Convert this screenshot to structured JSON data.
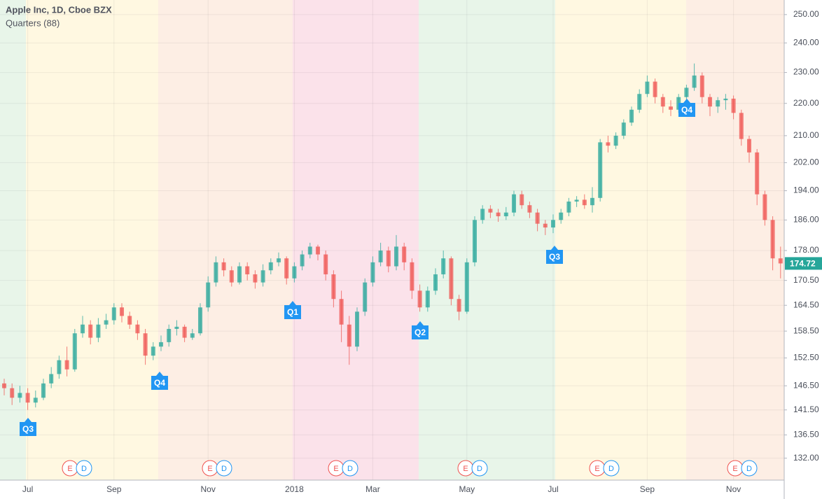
{
  "header": {
    "title": "Apple Inc, 1D, Cboe BZX",
    "indicator": "Quarters (88)"
  },
  "chart_data": {
    "type": "candlestick",
    "categories": [
      null,
      null,
      null,
      "Jul",
      null,
      null,
      null,
      null,
      null,
      null,
      null,
      null,
      null,
      null,
      "Sep",
      null,
      null,
      null,
      null,
      null,
      null,
      null,
      null,
      null,
      null,
      null,
      "Nov",
      null,
      null,
      null,
      null,
      null,
      null,
      null,
      null,
      null,
      null,
      "2018",
      null,
      null,
      null,
      null,
      null,
      null,
      null,
      null,
      null,
      "Mar",
      null,
      null,
      null,
      null,
      null,
      null,
      null,
      null,
      null,
      null,
      null,
      "May",
      null,
      null,
      null,
      null,
      null,
      null,
      null,
      null,
      null,
      null,
      "Jul",
      null,
      null,
      null,
      null,
      null,
      null,
      null,
      null,
      null,
      null,
      null,
      "Sep",
      null,
      null,
      null,
      null,
      null,
      null,
      null,
      null,
      null,
      null,
      "Nov",
      null,
      null,
      null,
      null,
      null,
      null
    ],
    "open": [
      147,
      146,
      144,
      145,
      143,
      144,
      147,
      149,
      152,
      150,
      158,
      160,
      157,
      160,
      161,
      164,
      162,
      160,
      158,
      153,
      155,
      156,
      159,
      159.5,
      157,
      158,
      164,
      170,
      175,
      173,
      170,
      174,
      172,
      170,
      173,
      175,
      176,
      171,
      174,
      177,
      179,
      177,
      172,
      166,
      160,
      155,
      163,
      170,
      175,
      178,
      174,
      179,
      175,
      168,
      164,
      168,
      172,
      176,
      166,
      163,
      175,
      186,
      189,
      188,
      187,
      188,
      193,
      190,
      188,
      185,
      184,
      186,
      188,
      191,
      191.5,
      190,
      192,
      208,
      207,
      210,
      214,
      218,
      223,
      227,
      222,
      219,
      218,
      222,
      225,
      229,
      222,
      219,
      221,
      221.5,
      217,
      209,
      205,
      193,
      186,
      176
    ],
    "high": [
      148,
      147,
      146.5,
      146,
      145.5,
      148,
      150.5,
      153,
      155,
      159,
      162,
      161,
      161.5,
      162.5,
      165,
      165,
      163,
      161,
      159,
      156,
      157.5,
      160,
      161,
      160,
      159,
      165,
      171.5,
      176.5,
      176,
      174,
      175,
      175,
      173,
      174.5,
      176,
      177.5,
      176.5,
      175,
      178,
      180,
      179.5,
      178,
      173,
      168,
      162,
      164,
      171,
      176.5,
      180,
      179,
      182,
      180,
      176,
      169.5,
      169,
      173.5,
      178,
      176.5,
      167,
      176,
      187,
      190,
      190,
      189,
      189.5,
      194,
      194,
      191,
      189,
      186,
      187.5,
      189,
      192,
      192.5,
      193,
      195,
      209,
      210,
      211,
      215,
      219,
      224.5,
      229,
      228,
      223,
      221,
      223,
      226,
      233,
      230,
      223,
      222,
      223,
      222.5,
      218,
      210,
      206,
      194,
      187,
      179
    ],
    "low": [
      144.5,
      142.5,
      143,
      141.5,
      142,
      143.5,
      146,
      148,
      148.5,
      149.5,
      157,
      155.5,
      156,
      159,
      160,
      160.5,
      159,
      156.5,
      151,
      152,
      154,
      155,
      157.5,
      156,
      156.5,
      157.5,
      163,
      169,
      171.5,
      169,
      169.5,
      170.5,
      168.5,
      169,
      172,
      174,
      169.5,
      170,
      173,
      176,
      175.5,
      170.5,
      164,
      156,
      151,
      154,
      162,
      169,
      174,
      172.5,
      173,
      173,
      166,
      163,
      163,
      167,
      171,
      164.5,
      161,
      162.5,
      174,
      185,
      186.5,
      185.5,
      186,
      187,
      189,
      186.5,
      183,
      182,
      182.5,
      185,
      187,
      189.5,
      189,
      188,
      191,
      205,
      206,
      209,
      213,
      217,
      222,
      220,
      217,
      216,
      217,
      221,
      224,
      220,
      216,
      217,
      218,
      215,
      207,
      202,
      190,
      184.5,
      173,
      171
    ],
    "close": [
      146,
      144,
      145,
      143,
      144,
      147,
      149,
      152,
      150,
      158,
      160,
      157,
      160,
      161,
      164,
      162,
      160,
      158,
      153,
      155,
      156,
      159,
      159.5,
      157,
      158,
      164,
      170,
      175,
      173,
      170,
      174,
      172,
      170,
      173,
      175,
      176,
      171,
      174,
      177,
      179,
      177,
      172,
      166,
      160,
      155,
      163,
      170,
      175,
      178,
      174,
      179,
      175,
      168,
      164,
      168,
      172,
      176,
      166,
      163,
      175,
      186,
      189,
      188,
      187,
      188,
      193,
      190,
      188,
      185,
      184,
      186,
      188,
      191,
      191.5,
      190,
      192,
      208,
      207,
      210,
      214,
      218,
      223,
      227,
      222,
      219,
      218,
      222,
      225,
      229,
      222,
      219,
      221,
      221.5,
      217,
      209,
      205,
      193,
      186,
      176,
      174.72
    ],
    "up_color": "#26a69a",
    "down_color": "#ef5350",
    "ylim": [
      127.9,
      255.3
    ],
    "log_scale": true,
    "grid": true,
    "yticks": [
      {
        "value": 250,
        "label": "250.00"
      },
      {
        "value": 240,
        "label": "240.00"
      },
      {
        "value": 230,
        "label": "230.00"
      },
      {
        "value": 220,
        "label": "220.00"
      },
      {
        "value": 210,
        "label": "210.00"
      },
      {
        "value": 202,
        "label": "202.00"
      },
      {
        "value": 194,
        "label": "194.00"
      },
      {
        "value": 186,
        "label": "186.00"
      },
      {
        "value": 178,
        "label": "178.00"
      },
      {
        "value": 170.5,
        "label": "170.50"
      },
      {
        "value": 164.5,
        "label": "164.50"
      },
      {
        "value": 158.5,
        "label": "158.50"
      },
      {
        "value": 152.5,
        "label": "152.50"
      },
      {
        "value": 146.5,
        "label": "146.50"
      },
      {
        "value": 141.5,
        "label": "141.50"
      },
      {
        "value": 136.5,
        "label": "136.50"
      },
      {
        "value": 132,
        "label": "132.00"
      }
    ]
  },
  "quarter_markers": [
    "Q3",
    "Q4",
    "Q1",
    "Q2",
    "Q3",
    "Q4"
  ],
  "events": [
    [
      "E",
      "D"
    ],
    [
      "E",
      "D"
    ],
    [
      "E",
      "D"
    ],
    [
      "E",
      "D"
    ],
    [
      "E",
      "D"
    ],
    [
      "E",
      "D"
    ]
  ]
}
